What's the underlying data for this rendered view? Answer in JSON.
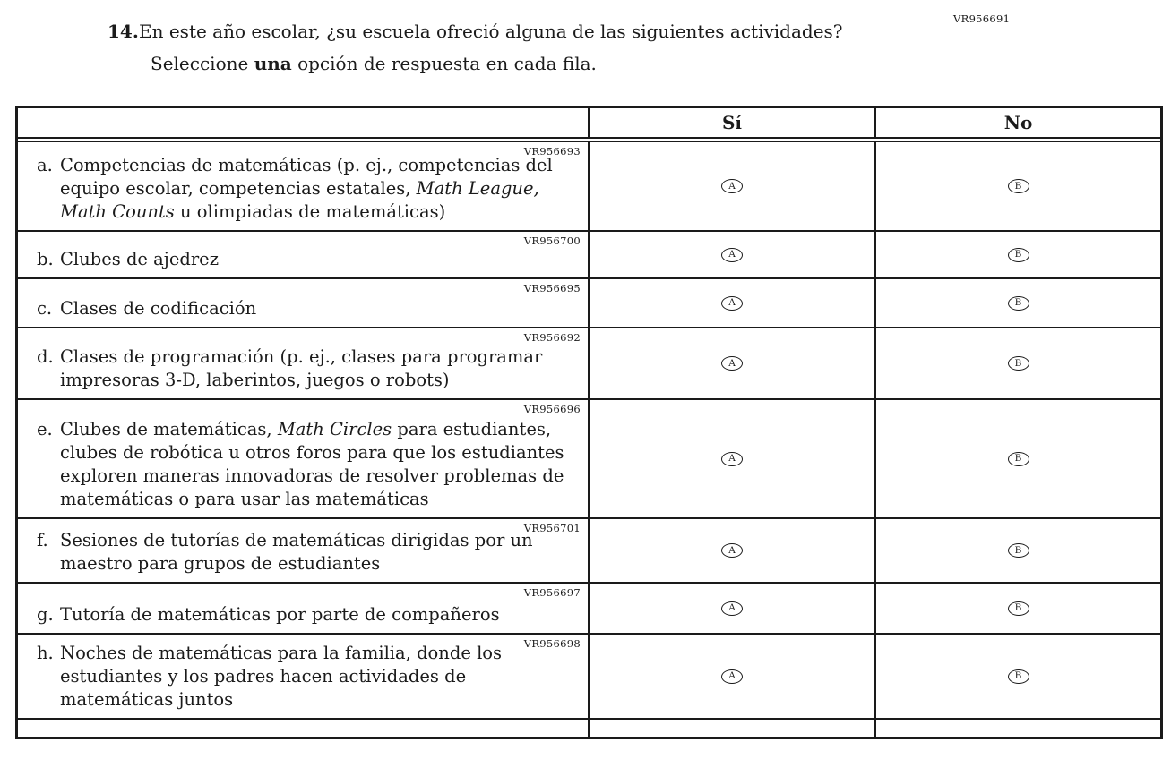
{
  "page": {
    "question_code": "VR956691"
  },
  "question": {
    "number": "14.",
    "text": "En este año escolar, ¿su escuela ofreció alguna de las siguientes actividades?",
    "instruction": {
      "pre": "Seleccione ",
      "bold": "una",
      "post": " opción de respuesta en cada fila."
    }
  },
  "table": {
    "header": {
      "col_yes": "Sí",
      "col_no": "No"
    },
    "option_labels": {
      "yes": "A",
      "no": "B"
    },
    "rows": [
      {
        "letter": "a.",
        "code": "VR956693",
        "pre": "Competencias de matemáticas (p. ej., competencias del equipo escolar, competencias estatales, ",
        "italic": "Math League, Math Counts",
        "post": " u olimpiadas de matemáticas)"
      },
      {
        "letter": "b.",
        "code": "VR956700",
        "pre": "Clubes de ajedrez",
        "italic": "",
        "post": ""
      },
      {
        "letter": "c.",
        "code": "VR956695",
        "pre": "Clases de codificación",
        "italic": "",
        "post": ""
      },
      {
        "letter": "d.",
        "code": "VR956692",
        "pre": "Clases de programación (p. ej., clases para programar impresoras 3-D, laberintos, juegos o robots)",
        "italic": "",
        "post": ""
      },
      {
        "letter": "e.",
        "code": "VR956696",
        "pre": "Clubes de matemáticas, ",
        "italic": "Math Circles",
        "post": " para estudiantes, clubes de robótica u otros foros para que los estudiantes exploren maneras innovadoras de resolver problemas de matemáticas o para usar las matemáticas"
      },
      {
        "letter": "f.",
        "code": "VR956701",
        "pre": "Sesiones de tutorías de matemáticas dirigidas por un maestro para grupos de estudiantes",
        "italic": "",
        "post": ""
      },
      {
        "letter": "g.",
        "code": "VR956697",
        "pre": "Tutoría de matemáticas por parte de compañeros",
        "italic": "",
        "post": ""
      },
      {
        "letter": "h.",
        "code": "VR956698",
        "pre": "Noches de matemáticas para la familia, donde los estudiantes y los padres hacen actividades de matemáticas juntos",
        "italic": "",
        "post": ""
      }
    ]
  }
}
